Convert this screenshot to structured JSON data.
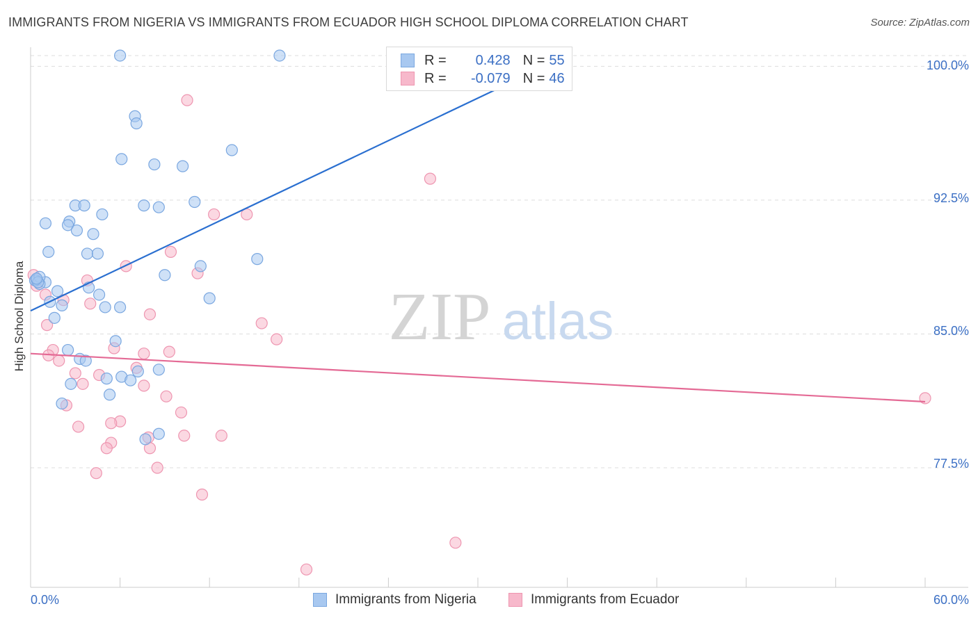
{
  "title": "IMMIGRANTS FROM NIGERIA VS IMMIGRANTS FROM ECUADOR HIGH SCHOOL DIPLOMA CORRELATION CHART",
  "source": "Source: ZipAtlas.com",
  "watermark": {
    "zip": "ZIP",
    "atlas": "atlas"
  },
  "legend_stats": {
    "r_label": "R =",
    "n_label": "N =",
    "nigeria": {
      "r": "0.428",
      "n": "55"
    },
    "ecuador": {
      "r": "-0.079",
      "n": "46"
    }
  },
  "colors": {
    "nigeria_fill": "#a8c8f0",
    "nigeria_stroke": "#7aa7e0",
    "nigeria_line": "#2a6fd0",
    "ecuador_fill": "#f7b8cb",
    "ecuador_stroke": "#ee95b0",
    "ecuador_line": "#e46a95",
    "tick_text": "#3b6fc4",
    "grid": "#dddddd"
  },
  "chart_data": {
    "type": "scatter",
    "title": "IMMIGRANTS FROM NIGERIA VS IMMIGRANTS FROM ECUADOR HIGH SCHOOL DIPLOMA CORRELATION CHART",
    "xlabel": "",
    "ylabel": "High School Diploma",
    "xlim": [
      0,
      60
    ],
    "ylim": [
      70.8,
      101.3
    ],
    "x_tick_labels": [
      "0.0%",
      "60.0%"
    ],
    "y_ticks": [
      77.5,
      85.0,
      92.5,
      100.0
    ],
    "y_tick_labels": [
      "77.5%",
      "85.0%",
      "92.5%",
      "100.0%"
    ],
    "x_minor_ticks": [
      0,
      6,
      12,
      18,
      24,
      30,
      36,
      42,
      48,
      54,
      60
    ],
    "grid": true,
    "series": [
      {
        "name": "Immigrants from Nigeria",
        "trend": {
          "x": [
            0,
            36
          ],
          "y": [
            86.3,
            100.6
          ]
        },
        "points": [
          [
            6.0,
            100.6
          ],
          [
            16.7,
            100.6
          ],
          [
            7.0,
            97.2
          ],
          [
            7.1,
            96.8
          ],
          [
            13.5,
            95.3
          ],
          [
            6.1,
            94.8
          ],
          [
            8.3,
            94.5
          ],
          [
            10.2,
            94.4
          ],
          [
            11.0,
            92.4
          ],
          [
            3.0,
            92.2
          ],
          [
            3.6,
            92.2
          ],
          [
            7.6,
            92.2
          ],
          [
            8.6,
            92.1
          ],
          [
            4.8,
            91.7
          ],
          [
            2.6,
            91.3
          ],
          [
            1.0,
            91.2
          ],
          [
            2.5,
            91.1
          ],
          [
            3.1,
            90.8
          ],
          [
            4.2,
            90.6
          ],
          [
            1.2,
            89.6
          ],
          [
            3.8,
            89.5
          ],
          [
            4.5,
            89.5
          ],
          [
            15.2,
            89.2
          ],
          [
            11.4,
            88.8
          ],
          [
            9.0,
            88.3
          ],
          [
            0.4,
            88.0
          ],
          [
            1.0,
            87.9
          ],
          [
            0.6,
            87.8
          ],
          [
            3.9,
            87.6
          ],
          [
            1.8,
            87.4
          ],
          [
            4.6,
            87.2
          ],
          [
            12.0,
            87.0
          ],
          [
            1.3,
            86.8
          ],
          [
            5.0,
            86.5
          ],
          [
            2.1,
            86.6
          ],
          [
            6.0,
            86.5
          ],
          [
            1.6,
            85.9
          ],
          [
            5.7,
            84.6
          ],
          [
            2.5,
            84.1
          ],
          [
            3.3,
            83.6
          ],
          [
            3.7,
            83.5
          ],
          [
            8.6,
            83.0
          ],
          [
            7.2,
            82.9
          ],
          [
            6.1,
            82.6
          ],
          [
            5.1,
            82.5
          ],
          [
            6.7,
            82.4
          ],
          [
            2.7,
            82.2
          ],
          [
            5.3,
            81.6
          ],
          [
            2.1,
            81.1
          ],
          [
            8.6,
            79.4
          ],
          [
            7.7,
            79.1
          ],
          [
            0.3,
            88.0
          ],
          [
            0.6,
            88.2
          ],
          [
            0.5,
            87.9
          ],
          [
            0.4,
            88.1
          ]
        ]
      },
      {
        "name": "Immigrants from Ecuador",
        "trend": {
          "x": [
            0,
            60
          ],
          "y": [
            83.9,
            81.2
          ]
        },
        "points": [
          [
            10.5,
            98.1
          ],
          [
            26.8,
            93.7
          ],
          [
            12.3,
            91.7
          ],
          [
            14.5,
            91.7
          ],
          [
            9.4,
            89.6
          ],
          [
            6.4,
            88.8
          ],
          [
            11.2,
            88.4
          ],
          [
            3.8,
            88.0
          ],
          [
            1.0,
            87.2
          ],
          [
            2.2,
            86.9
          ],
          [
            4.0,
            86.7
          ],
          [
            8.0,
            86.1
          ],
          [
            15.5,
            85.6
          ],
          [
            1.1,
            85.5
          ],
          [
            16.5,
            84.7
          ],
          [
            5.6,
            84.2
          ],
          [
            1.5,
            84.1
          ],
          [
            9.3,
            84.0
          ],
          [
            7.6,
            83.9
          ],
          [
            1.2,
            83.8
          ],
          [
            1.9,
            83.5
          ],
          [
            7.1,
            83.1
          ],
          [
            3.0,
            82.8
          ],
          [
            4.6,
            82.7
          ],
          [
            3.5,
            82.2
          ],
          [
            7.6,
            82.1
          ],
          [
            9.1,
            81.5
          ],
          [
            2.4,
            81.0
          ],
          [
            10.1,
            80.6
          ],
          [
            6.0,
            80.1
          ],
          [
            5.4,
            80.0
          ],
          [
            3.2,
            79.8
          ],
          [
            12.8,
            79.3
          ],
          [
            10.3,
            79.3
          ],
          [
            7.9,
            79.2
          ],
          [
            5.4,
            78.9
          ],
          [
            8.0,
            78.6
          ],
          [
            5.1,
            78.6
          ],
          [
            8.5,
            77.5
          ],
          [
            4.4,
            77.2
          ],
          [
            11.5,
            76.0
          ],
          [
            60.0,
            81.4
          ],
          [
            28.5,
            73.3
          ],
          [
            18.5,
            71.8
          ],
          [
            0.2,
            88.3
          ],
          [
            0.4,
            87.7
          ]
        ]
      }
    ]
  },
  "bottom_legend": {
    "nigeria": "Immigrants from Nigeria",
    "ecuador": "Immigrants from Ecuador"
  }
}
